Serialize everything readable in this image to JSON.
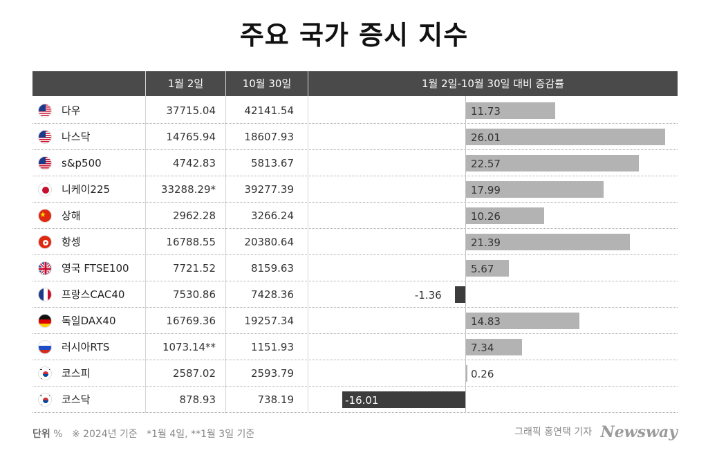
{
  "title": "주요 국가 증시 지수",
  "headers": {
    "col1": "1월 2일",
    "col2": "10월 30일",
    "col3": "1월 2일-10월 30일 대비 증감률"
  },
  "footer": {
    "unit_label": "단위",
    "unit": "%",
    "note": "※ 2024년 기준   *1월 4일, **1월 3일 기준",
    "credit": "그래픽 홍연택 기자",
    "logo": "Newsway"
  },
  "chart_data": {
    "type": "bar",
    "title": "주요 국가 증시 지수",
    "xlim": [
      -16.01,
      26.01
    ],
    "categories": [
      "다우",
      "나스닥",
      "s&p500",
      "니케이225",
      "상해",
      "항셍",
      "영국 FTSE100",
      "프랑스CAC40",
      "독일DAX40",
      "러시아RTS",
      "코스피",
      "코스닥"
    ],
    "rows": [
      {
        "flag": "us-flag-icon",
        "name": "다우",
        "jan2": "37715.04",
        "oct30": "42141.54",
        "change": 11.73,
        "label": "11.73"
      },
      {
        "flag": "us-flag-icon",
        "name": "나스닥",
        "jan2": "14765.94",
        "oct30": "18607.93",
        "change": 26.01,
        "label": "26.01"
      },
      {
        "flag": "us-flag-icon",
        "name": "s&p500",
        "jan2": "4742.83",
        "oct30": "5813.67",
        "change": 22.57,
        "label": "22.57"
      },
      {
        "flag": "jp-flag-icon",
        "name": "니케이225",
        "jan2": "33288.29*",
        "oct30": "39277.39",
        "change": 17.99,
        "label": "17.99"
      },
      {
        "flag": "cn-flag-icon",
        "name": "상해",
        "jan2": "2962.28",
        "oct30": "3266.24",
        "change": 10.26,
        "label": "10.26"
      },
      {
        "flag": "hk-flag-icon",
        "name": "항셍",
        "jan2": "16788.55",
        "oct30": "20380.64",
        "change": 21.39,
        "label": "21.39"
      },
      {
        "flag": "uk-flag-icon",
        "name": "영국 FTSE100",
        "jan2": "7721.52",
        "oct30": "8159.63",
        "change": 5.67,
        "label": "5.67"
      },
      {
        "flag": "fr-flag-icon",
        "name": "프랑스CAC40",
        "jan2": "7530.86",
        "oct30": "7428.36",
        "change": -1.36,
        "label": "-1.36"
      },
      {
        "flag": "de-flag-icon",
        "name": "독일DAX40",
        "jan2": "16769.36",
        "oct30": "19257.34",
        "change": 14.83,
        "label": "14.83"
      },
      {
        "flag": "ru-flag-icon",
        "name": "러시아RTS",
        "jan2": "1073.14**",
        "oct30": "1151.93",
        "change": 7.34,
        "label": "7.34"
      },
      {
        "flag": "kr-flag-icon",
        "name": "코스피",
        "jan2": "2587.02",
        "oct30": "2593.79",
        "change": 0.26,
        "label": "0.26"
      },
      {
        "flag": "kr-flag-icon",
        "name": "코스닥",
        "jan2": "878.93",
        "oct30": "738.19",
        "change": -16.01,
        "label": "-16.01"
      }
    ],
    "colors": {
      "positive": "#b3b3b3",
      "negative": "#3c3c3c",
      "header": "#4a4a4a"
    }
  }
}
